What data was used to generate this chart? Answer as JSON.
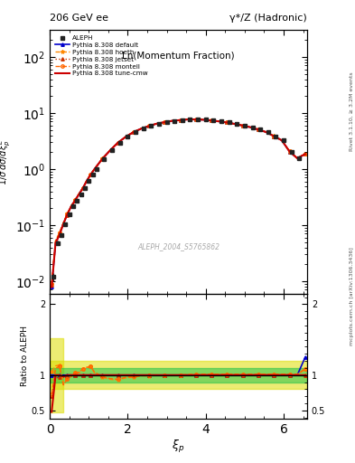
{
  "title_left": "206 GeV ee",
  "title_right": "γ*/Z (Hadronic)",
  "plot_title": "Ln(Momentum Fraction)",
  "xlabel": "ξ_p",
  "ylabel_main": "1/σ dσ/dξ_p^E",
  "ylabel_ratio": "Ratio to ALEPH",
  "watermark": "ALEPH_2004_S5765862",
  "right_label": "Rivet 3.1.10, ≥ 3.2M events",
  "right_label2": "mcplots.cern.ch [arXiv:1306.3436]",
  "xlim": [
    0.0,
    6.6
  ],
  "ylim_main": [
    0.006,
    300
  ],
  "ylim_ratio": [
    0.38,
    2.15
  ],
  "data_x": [
    0.1,
    0.2,
    0.3,
    0.4,
    0.5,
    0.6,
    0.7,
    0.8,
    0.9,
    1.0,
    1.1,
    1.2,
    1.4,
    1.6,
    1.8,
    2.0,
    2.2,
    2.4,
    2.6,
    2.8,
    3.0,
    3.2,
    3.4,
    3.6,
    3.8,
    4.0,
    4.2,
    4.4,
    4.6,
    4.8,
    5.0,
    5.2,
    5.4,
    5.6,
    5.8,
    6.0,
    6.2,
    6.4
  ],
  "data_y": [
    0.012,
    0.048,
    0.067,
    0.105,
    0.155,
    0.215,
    0.275,
    0.355,
    0.455,
    0.615,
    0.795,
    1.0,
    1.52,
    2.15,
    2.95,
    3.75,
    4.55,
    5.25,
    5.85,
    6.45,
    6.85,
    7.25,
    7.45,
    7.65,
    7.65,
    7.55,
    7.35,
    7.05,
    6.75,
    6.35,
    5.95,
    5.55,
    5.05,
    4.55,
    3.85,
    3.25,
    2.05,
    1.55
  ],
  "data_yerr": [
    0.002,
    0.004,
    0.004,
    0.005,
    0.006,
    0.007,
    0.008,
    0.009,
    0.01,
    0.012,
    0.014,
    0.016,
    0.02,
    0.025,
    0.03,
    0.035,
    0.04,
    0.045,
    0.05,
    0.055,
    0.06,
    0.06,
    0.06,
    0.06,
    0.06,
    0.06,
    0.06,
    0.06,
    0.06,
    0.06,
    0.055,
    0.05,
    0.05,
    0.045,
    0.04,
    0.035,
    0.03,
    0.025
  ],
  "pythia_x": [
    0.05,
    0.15,
    0.25,
    0.35,
    0.45,
    0.55,
    0.65,
    0.75,
    0.85,
    0.95,
    1.05,
    1.15,
    1.35,
    1.55,
    1.75,
    1.95,
    2.15,
    2.35,
    2.55,
    2.75,
    2.95,
    3.15,
    3.35,
    3.55,
    3.75,
    3.95,
    4.15,
    4.35,
    4.55,
    4.75,
    4.95,
    5.15,
    5.35,
    5.55,
    5.75,
    5.95,
    6.15,
    6.35,
    6.55
  ],
  "pythia_default_y": [
    0.008,
    0.048,
    0.067,
    0.105,
    0.155,
    0.215,
    0.275,
    0.355,
    0.455,
    0.615,
    0.795,
    1.0,
    1.52,
    2.15,
    2.95,
    3.75,
    4.55,
    5.25,
    5.85,
    6.45,
    6.85,
    7.25,
    7.45,
    7.65,
    7.65,
    7.55,
    7.35,
    7.05,
    6.75,
    6.35,
    5.95,
    5.55,
    5.05,
    4.55,
    3.85,
    3.25,
    2.05,
    1.55,
    1.85
  ],
  "pythia_hoeth_y": [
    0.009,
    0.053,
    0.073,
    0.11,
    0.16,
    0.22,
    0.282,
    0.362,
    0.462,
    0.622,
    0.802,
    1.01,
    1.53,
    2.16,
    2.96,
    3.76,
    4.56,
    5.26,
    5.86,
    6.46,
    6.86,
    7.26,
    7.46,
    7.66,
    7.66,
    7.56,
    7.36,
    7.06,
    6.76,
    6.36,
    5.96,
    5.56,
    5.06,
    4.56,
    3.86,
    3.26,
    2.06,
    1.56,
    1.86
  ],
  "pythia_jetset_y": [
    0.0085,
    0.046,
    0.065,
    0.102,
    0.152,
    0.212,
    0.272,
    0.352,
    0.452,
    0.612,
    0.792,
    0.99,
    1.51,
    2.14,
    2.94,
    3.74,
    4.54,
    5.24,
    5.84,
    6.44,
    6.84,
    7.24,
    7.44,
    7.64,
    7.64,
    7.54,
    7.34,
    7.04,
    6.74,
    6.34,
    5.94,
    5.54,
    5.04,
    4.54,
    3.84,
    3.24,
    2.04,
    1.54,
    1.84
  ],
  "pythia_montell_y": [
    0.009,
    0.052,
    0.072,
    0.109,
    0.158,
    0.218,
    0.28,
    0.36,
    0.46,
    0.62,
    0.8,
    1.005,
    1.525,
    2.155,
    2.955,
    3.755,
    4.555,
    5.255,
    5.855,
    6.455,
    6.855,
    7.255,
    7.455,
    7.655,
    7.655,
    7.555,
    7.355,
    7.055,
    6.755,
    6.355,
    5.955,
    5.555,
    5.055,
    4.555,
    3.855,
    3.255,
    2.055,
    1.555,
    1.855
  ],
  "pythia_cmw_y": [
    0.0078,
    0.048,
    0.067,
    0.105,
    0.155,
    0.215,
    0.275,
    0.355,
    0.455,
    0.615,
    0.795,
    1.0,
    1.52,
    2.15,
    2.95,
    3.75,
    4.55,
    5.25,
    5.85,
    6.45,
    6.85,
    7.25,
    7.45,
    7.65,
    7.65,
    7.55,
    7.35,
    7.05,
    6.75,
    6.35,
    5.95,
    5.55,
    5.05,
    4.55,
    3.85,
    3.25,
    2.05,
    1.55,
    1.85
  ],
  "ratio_x": [
    0.05,
    0.15,
    0.25,
    0.35,
    0.45,
    0.55,
    0.65,
    0.75,
    0.85,
    0.95,
    1.05,
    1.15,
    1.35,
    1.55,
    1.75,
    1.95,
    2.15,
    2.35,
    2.55,
    2.75,
    2.95,
    3.15,
    3.35,
    3.55,
    3.75,
    3.95,
    4.15,
    4.35,
    4.55,
    4.75,
    4.95,
    5.15,
    5.35,
    5.55,
    5.75,
    5.95,
    6.15,
    6.35,
    6.55
  ],
  "ratio_default": [
    1.0,
    1.0,
    1.0,
    1.0,
    1.0,
    1.0,
    1.0,
    1.0,
    1.0,
    1.0,
    1.0,
    1.0,
    1.0,
    1.0,
    1.0,
    1.0,
    1.0,
    1.0,
    1.0,
    1.0,
    1.0,
    1.0,
    1.0,
    1.0,
    1.0,
    1.0,
    1.0,
    1.0,
    1.0,
    1.0,
    1.0,
    1.0,
    1.0,
    1.0,
    1.0,
    1.0,
    1.0,
    1.0,
    1.25
  ],
  "ratio_hoeth": [
    1.05,
    1.13,
    1.14,
    0.88,
    0.95,
    0.98,
    1.03,
    1.03,
    1.08,
    1.1,
    1.12,
    1.03,
    0.97,
    0.94,
    0.93,
    0.96,
    0.97,
    0.99,
    0.99,
    1.0,
    1.0,
    1.0,
    1.0,
    1.01,
    1.01,
    1.01,
    1.01,
    1.01,
    1.01,
    1.01,
    1.01,
    1.01,
    1.01,
    1.01,
    1.01,
    1.01,
    1.01,
    1.01,
    1.08
  ],
  "ratio_jetset": [
    0.7,
    0.96,
    0.97,
    0.97,
    0.98,
    1.0,
    1.0,
    1.0,
    1.0,
    1.0,
    1.0,
    1.0,
    1.0,
    0.995,
    0.995,
    0.995,
    0.995,
    0.995,
    0.995,
    0.995,
    1.0,
    1.0,
    1.0,
    1.0,
    1.0,
    1.0,
    1.0,
    1.0,
    1.0,
    1.0,
    1.0,
    1.0,
    1.0,
    1.0,
    1.0,
    1.0,
    1.0,
    1.0,
    1.0
  ],
  "ratio_montell": [
    0.73,
    1.09,
    1.13,
    0.86,
    0.94,
    0.98,
    1.03,
    1.04,
    1.09,
    1.11,
    1.12,
    1.04,
    0.98,
    0.95,
    0.94,
    0.97,
    0.98,
    0.995,
    0.995,
    1.0,
    1.0,
    1.0,
    1.0,
    1.0,
    1.01,
    1.01,
    1.01,
    1.01,
    1.01,
    1.01,
    1.01,
    1.01,
    1.01,
    1.01,
    1.01,
    1.01,
    1.01,
    1.01,
    1.09
  ],
  "ratio_cmw": [
    0.48,
    1.0,
    1.0,
    0.98,
    1.0,
    1.0,
    1.0,
    1.0,
    1.0,
    1.0,
    1.0,
    1.0,
    1.0,
    1.0,
    1.0,
    1.0,
    1.0,
    1.0,
    1.0,
    1.0,
    1.0,
    1.0,
    1.0,
    1.0,
    1.0,
    1.0,
    1.0,
    1.0,
    1.0,
    1.0,
    1.0,
    1.0,
    1.0,
    1.0,
    1.0,
    1.0,
    1.0,
    1.0,
    1.0
  ],
  "color_data": "#222222",
  "color_default": "#0000cc",
  "color_hoeth": "#ff8800",
  "color_jetset": "#cc3300",
  "color_montell": "#ff6600",
  "color_cmw": "#cc0000",
  "color_band_green": "#00bb44",
  "color_band_yellow": "#dddd00"
}
